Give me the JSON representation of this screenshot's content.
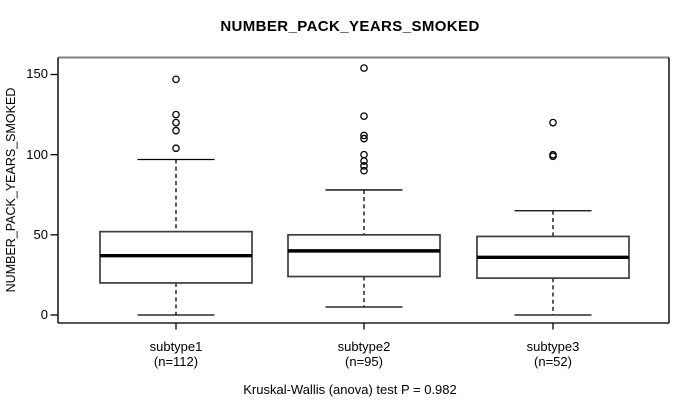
{
  "title": "NUMBER_PACK_YEARS_SMOKED",
  "caption": "Kruskal-Wallis (anova) test P = 0.982",
  "colors": {
    "background": "#ffffff",
    "box_stroke": "#3d3d3d",
    "median": "#000000",
    "whisker": "#000000",
    "outlier_stroke": "#000000",
    "border_top": "#828282",
    "border_sides": "#1f1f1f",
    "tick": "#000000"
  },
  "chart_data": {
    "type": "boxplot",
    "title": "NUMBER_PACK_YEARS_SMOKED",
    "ylabel": "NUMBER_PACK_YEARS_SMOKED",
    "xlabel": "",
    "yticks": [
      0,
      50,
      100,
      150
    ],
    "ylim": [
      -5,
      161
    ],
    "grid": "off",
    "annotation": "Kruskal-Wallis (anova) test P = 0.982",
    "groups": [
      {
        "label": "subtype1",
        "n_label": "(n=112)",
        "n": 112,
        "stats": {
          "whisker_low": 0,
          "q1": 20,
          "median": 37,
          "q3": 52,
          "whisker_high": 97
        },
        "outliers": [
          104,
          115,
          120,
          125,
          147
        ]
      },
      {
        "label": "subtype2",
        "n_label": "(n=95)",
        "n": 95,
        "stats": {
          "whisker_low": 5,
          "q1": 24,
          "median": 40,
          "q3": 50,
          "whisker_high": 78
        },
        "outliers": [
          90,
          93,
          96,
          100,
          110,
          112,
          124,
          154
        ]
      },
      {
        "label": "subtype3",
        "n_label": "(n=52)",
        "n": 52,
        "stats": {
          "whisker_low": 0,
          "q1": 23,
          "median": 36,
          "q3": 49,
          "whisker_high": 65
        },
        "outliers": [
          99,
          100,
          120
        ]
      }
    ]
  }
}
